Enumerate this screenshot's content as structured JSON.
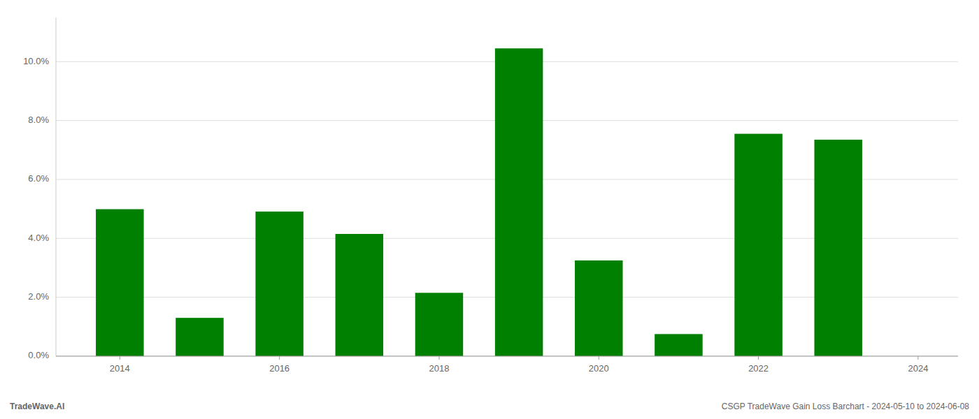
{
  "chart_data": {
    "type": "bar",
    "title": "CSGP TradeWave Gain Loss Barchart - 2024-05-10 to 2024-06-08",
    "annotations": [
      "TradeWave.AI"
    ],
    "x": [
      2014,
      2015,
      2016,
      2017,
      2018,
      2019,
      2020,
      2021,
      2022,
      2023
    ],
    "values": [
      0.0499,
      0.013,
      0.0491,
      0.0415,
      0.0215,
      0.1045,
      0.0325,
      0.0075,
      0.0755,
      0.0735
    ],
    "color": "#008000",
    "xlim": [
      2013.2,
      2024.5
    ],
    "xticks": [
      2014,
      2016,
      2018,
      2020,
      2022,
      2024
    ],
    "ylim": [
      0,
      0.115
    ],
    "yticks": [
      {
        "value": 0.0,
        "label": "0.0%"
      },
      {
        "value": 0.02,
        "label": "2.0%"
      },
      {
        "value": 0.04,
        "label": "4.0%"
      },
      {
        "value": 0.06,
        "label": "6.0%"
      },
      {
        "value": 0.08,
        "label": "8.0%"
      },
      {
        "value": 0.1,
        "label": "10.0%"
      }
    ],
    "grid": true
  }
}
